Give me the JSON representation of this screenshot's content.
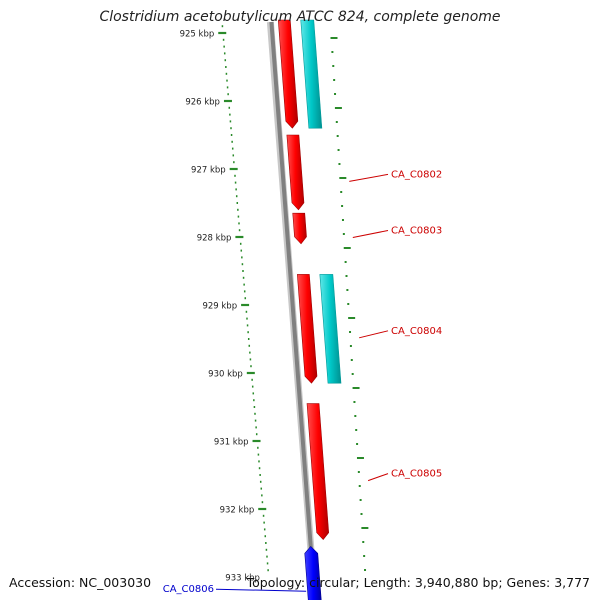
{
  "title": "Clostridium acetobutylicum ATCC 824, complete genome",
  "accession_label": "Accession: NC_003030",
  "summary_label": "Topology: circular; Length: 3,940,880 bp; Genes: 3,777",
  "colors": {
    "forward_gene": "#ff0000",
    "cds_track": "#00c8c8",
    "reverse_gene": "#0000ff",
    "backbone": "#808080",
    "ticks": "#2a8a2a",
    "forward_label": "#cc0000",
    "reverse_label": "#0000cc"
  },
  "ruler": {
    "unit": "kbp",
    "ticks": [
      {
        "label": "925 kbp",
        "position_kbp": 925
      },
      {
        "label": "926 kbp",
        "position_kbp": 926
      },
      {
        "label": "927 kbp",
        "position_kbp": 927
      },
      {
        "label": "928 kbp",
        "position_kbp": 928
      },
      {
        "label": "929 kbp",
        "position_kbp": 929
      },
      {
        "label": "930 kbp",
        "position_kbp": 930
      },
      {
        "label": "931 kbp",
        "position_kbp": 931
      },
      {
        "label": "932 kbp",
        "position_kbp": 932
      },
      {
        "label": "933 kbp",
        "position_kbp": 933
      }
    ]
  },
  "genes": [
    {
      "id": "g0801",
      "label": "",
      "strand": "forward",
      "start_kbp": 924.8,
      "end_kbp": 926.4
    },
    {
      "id": "g0802",
      "label": "CA_C0802",
      "strand": "forward",
      "start_kbp": 926.5,
      "end_kbp": 927.6
    },
    {
      "id": "g0803",
      "label": "CA_C0803",
      "strand": "forward",
      "start_kbp": 927.65,
      "end_kbp": 928.1
    },
    {
      "id": "g0804",
      "label": "CA_C0804",
      "strand": "forward",
      "start_kbp": 928.55,
      "end_kbp": 930.15
    },
    {
      "id": "g0805",
      "label": "CA_C0805",
      "strand": "forward",
      "start_kbp": 930.45,
      "end_kbp": 932.45
    },
    {
      "id": "g0806",
      "label": "CA_C0806",
      "strand": "reverse",
      "start_kbp": 932.55,
      "end_kbp": 933.4
    }
  ],
  "cds_blocks": [
    {
      "id": "c1",
      "start_kbp": 924.8,
      "end_kbp": 926.4
    },
    {
      "id": "c2",
      "start_kbp": 928.55,
      "end_kbp": 930.15
    }
  ]
}
